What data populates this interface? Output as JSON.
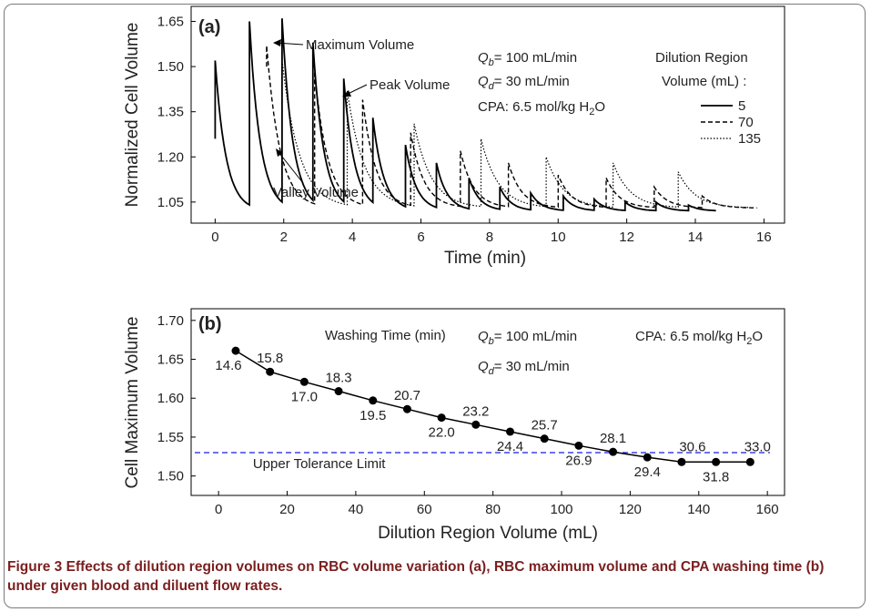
{
  "figure": {
    "label": "Figure 3",
    "caption": "Effects of dilution region volumes on RBC volume variation (a), RBC maximum volume and CPA washing time (b) under given blood and diluent flow rates."
  },
  "chart_data": [
    {
      "id": "a",
      "type": "line",
      "panel_label": "(a)",
      "xlabel": "Time (min)",
      "ylabel": "Normalized Cell Volume",
      "xlim": [
        -0.7,
        16.6
      ],
      "ylim": [
        0.98,
        1.7
      ],
      "xticks": [
        0,
        2,
        4,
        6,
        8,
        10,
        12,
        14,
        16
      ],
      "yticks": [
        1.05,
        1.2,
        1.35,
        1.5,
        1.65
      ],
      "ytick_labels": [
        "1.05",
        "1.20",
        "1.35",
        "1.50",
        "1.65"
      ],
      "annotations": {
        "max_volume": "Maximum Volume",
        "peak_volume": "Peak Volume",
        "valley_volume": "Valley Volume"
      },
      "conditions": {
        "qb_sym": "Q",
        "qb_sub": "b",
        "qb_val": "= 100 mL/min",
        "qd_sym": "Q",
        "qd_sub": "d",
        "qd_val": "= 30 mL/min",
        "cpa_prefix": "CPA: 6.5 mol/kg H",
        "cpa_sub": "2",
        "cpa_suffix": "O"
      },
      "legend": {
        "title1": "Dilution Region",
        "title2": "Volume (mL) :",
        "placement": "top-right"
      },
      "series": [
        {
          "name": "5",
          "style": "solid",
          "start": 1.26,
          "floor": 1.02,
          "decay": 3.2,
          "jumps": [
            {
              "t": 0.0,
              "peak": 1.52
            },
            {
              "t": 1.0,
              "peak": 1.65
            },
            {
              "t": 1.95,
              "peak": 1.66
            },
            {
              "t": 2.85,
              "peak": 1.58
            },
            {
              "t": 3.75,
              "peak": 1.46
            },
            {
              "t": 4.6,
              "peak": 1.33
            },
            {
              "t": 5.55,
              "peak": 1.24
            },
            {
              "t": 6.45,
              "peak": 1.18
            },
            {
              "t": 7.4,
              "peak": 1.13
            },
            {
              "t": 8.3,
              "peak": 1.1
            },
            {
              "t": 9.2,
              "peak": 1.08
            },
            {
              "t": 10.15,
              "peak": 1.07
            },
            {
              "t": 11.05,
              "peak": 1.06
            },
            {
              "t": 11.95,
              "peak": 1.05
            },
            {
              "t": 12.85,
              "peak": 1.05
            },
            {
              "t": 13.8,
              "peak": 1.04
            }
          ],
          "end": 14.6
        },
        {
          "name": "70",
          "style": "dashed",
          "start": 1.5,
          "floor": 1.03,
          "decay": 2.6,
          "jumps": [
            {
              "t": 1.5,
              "peak": 1.57
            },
            {
              "t": 2.9,
              "peak": 1.48
            },
            {
              "t": 4.3,
              "peak": 1.39
            },
            {
              "t": 5.7,
              "peak": 1.28
            },
            {
              "t": 7.15,
              "peak": 1.22
            },
            {
              "t": 8.55,
              "peak": 1.18
            },
            {
              "t": 10.0,
              "peak": 1.14
            },
            {
              "t": 11.4,
              "peak": 1.13
            },
            {
              "t": 12.8,
              "peak": 1.1
            },
            {
              "t": 14.2,
              "peak": 1.07
            }
          ],
          "end": 15.8
        },
        {
          "name": "135",
          "style": "dotted",
          "start": 1.52,
          "floor": 1.03,
          "decay": 2.0,
          "jumps": [
            {
              "t": 1.95,
              "peak": 1.52
            },
            {
              "t": 3.85,
              "peak": 1.42
            },
            {
              "t": 5.8,
              "peak": 1.31
            },
            {
              "t": 7.75,
              "peak": 1.26
            },
            {
              "t": 9.65,
              "peak": 1.2
            },
            {
              "t": 11.6,
              "peak": 1.18
            },
            {
              "t": 13.5,
              "peak": 1.15
            }
          ],
          "end": 15.6
        }
      ]
    },
    {
      "id": "b",
      "type": "line",
      "panel_label": "(b)",
      "xlabel": "Dilution Region Volume  (mL)",
      "ylabel": "Cell Maximum Volume",
      "xlim": [
        -8,
        165
      ],
      "ylim": [
        1.475,
        1.715
      ],
      "xticks": [
        0,
        20,
        40,
        60,
        80,
        100,
        120,
        140,
        160
      ],
      "yticks": [
        1.5,
        1.55,
        1.6,
        1.65,
        1.7
      ],
      "ytick_labels": [
        "1.50",
        "1.55",
        "1.60",
        "1.65",
        "1.70"
      ],
      "x": [
        5,
        15,
        25,
        35,
        45,
        55,
        65,
        75,
        85,
        95,
        105,
        115,
        125,
        135,
        145,
        155
      ],
      "y": [
        1.661,
        1.634,
        1.621,
        1.609,
        1.597,
        1.586,
        1.575,
        1.566,
        1.557,
        1.548,
        1.539,
        1.531,
        1.524,
        1.518,
        1.518,
        1.518
      ],
      "washing_time_title": "Washing Time (min)",
      "washing_time": [
        "14.6",
        "15.8",
        "17.0",
        "18.3",
        "19.5",
        "20.7",
        "22.0",
        "23.2",
        "24.4",
        "25.7",
        "26.9",
        "28.1",
        "29.4",
        "30.6",
        "31.8",
        "33.0"
      ],
      "tolerance": {
        "value": 1.53,
        "label": "Upper Tolerance Limit",
        "color": "#1a1ae6"
      },
      "conditions": {
        "qb_sym": "Q",
        "qb_sub": "b",
        "qb_val": "= 100 mL/min",
        "qd_sym": "Q",
        "qd_sub": "d",
        "qd_val": "= 30 mL/min",
        "cpa_prefix": "CPA: 6.5 mol/kg H",
        "cpa_sub": "2",
        "cpa_suffix": "O"
      }
    }
  ]
}
